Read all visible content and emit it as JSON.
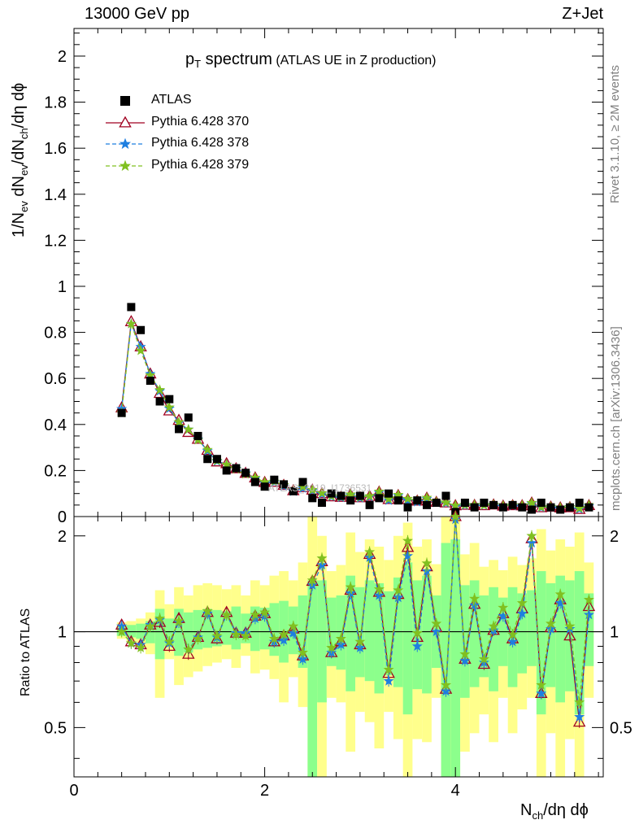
{
  "header": {
    "energy": "13000 GeV pp",
    "process": "Z+Jet"
  },
  "side_labels": {
    "rivet": "Rivet 3.1.10, ≥ 2M events",
    "mcplots": "mcplots.cern.ch [arXiv:1306.3436]"
  },
  "chart_data": {
    "type": "scatter",
    "title_main": "p",
    "title_sub": "T",
    "title_rest": " spectrum",
    "subtitle": "(ATLAS UE in Z production)",
    "watermark": "ATLAS_2019_I1736531",
    "xlabel_parts": [
      "N",
      "ch",
      "/dη dϕ"
    ],
    "ylabel_parts": [
      "1/N",
      "ev",
      " dN",
      "ev",
      "/dN",
      "ch",
      "/dη dϕ"
    ],
    "ratio_ylabel": "Ratio to ATLAS",
    "xlim": [
      0,
      5.55
    ],
    "ylim": [
      0,
      2.12
    ],
    "ratio_ylim": [
      0.35,
      2.3
    ],
    "ratio_log": true,
    "x_ticks": [
      {
        "v": 0,
        "label": "0"
      },
      {
        "v": 2,
        "label": "2"
      },
      {
        "v": 4,
        "label": "4"
      }
    ],
    "y_ticks": [
      {
        "v": 0,
        "label": "0"
      },
      {
        "v": 0.2,
        "label": "0.2"
      },
      {
        "v": 0.4,
        "label": "0.4"
      },
      {
        "v": 0.6,
        "label": "0.6"
      },
      {
        "v": 0.8,
        "label": "0.8"
      },
      {
        "v": 1,
        "label": "1"
      },
      {
        "v": 1.2,
        "label": "1.2"
      },
      {
        "v": 1.4,
        "label": "1.4"
      },
      {
        "v": 1.6,
        "label": "1.6"
      },
      {
        "v": 1.8,
        "label": "1.8"
      },
      {
        "v": 2,
        "label": "2"
      }
    ],
    "ratio_ticks": [
      {
        "v": 0.5,
        "label": "0.5"
      },
      {
        "v": 1,
        "label": "1"
      },
      {
        "v": 2,
        "label": "2"
      }
    ],
    "legend": [
      {
        "name": "ATLAS",
        "color": "#000000",
        "marker": "square"
      },
      {
        "name": "Pythia 6.428 370",
        "color": "#a00020",
        "marker": "triangle"
      },
      {
        "name": "Pythia 6.428 378",
        "color": "#1e7fe0",
        "marker": "star"
      },
      {
        "name": "Pythia 6.428 379",
        "color": "#80c020",
        "marker": "star"
      }
    ],
    "x": [
      0.5,
      0.6,
      0.7,
      0.8,
      0.9,
      1.0,
      1.1,
      1.2,
      1.3,
      1.4,
      1.5,
      1.6,
      1.7,
      1.8,
      1.9,
      2.0,
      2.1,
      2.2,
      2.3,
      2.4,
      2.5,
      2.6,
      2.7,
      2.8,
      2.9,
      3.0,
      3.1,
      3.2,
      3.3,
      3.4,
      3.5,
      3.6,
      3.7,
      3.8,
      3.9,
      4.0,
      4.1,
      4.2,
      4.3,
      4.4,
      4.5,
      4.6,
      4.7,
      4.8,
      4.9,
      5.0,
      5.1,
      5.2,
      5.3,
      5.4
    ],
    "data_values": [
      0.45,
      0.91,
      0.81,
      0.59,
      0.5,
      0.51,
      0.38,
      0.43,
      0.35,
      0.25,
      0.25,
      0.2,
      0.21,
      0.19,
      0.15,
      0.13,
      0.16,
      0.14,
      0.11,
      0.15,
      0.08,
      0.06,
      0.1,
      0.09,
      0.07,
      0.09,
      0.05,
      0.08,
      0.1,
      0.07,
      0.04,
      0.07,
      0.05,
      0.06,
      0.09,
      0.02,
      0.06,
      0.04,
      0.06,
      0.05,
      0.04,
      0.05,
      0.04,
      0.03,
      0.06,
      0.04,
      0.03,
      0.04,
      0.06,
      0.04
    ],
    "ratio_x": [
      0.5,
      0.6,
      0.7,
      0.8,
      0.9,
      1.0,
      1.1,
      1.2,
      1.3,
      1.4,
      1.5,
      1.6,
      1.7,
      1.8,
      1.9,
      2.0,
      2.1,
      2.2,
      2.3,
      2.4,
      2.5,
      2.6,
      2.7,
      2.8,
      2.9,
      3.0,
      3.1,
      3.2,
      3.3,
      3.4,
      3.5,
      3.6,
      3.7,
      3.8,
      3.9,
      4.0,
      4.1,
      4.2,
      4.3,
      4.4,
      4.5,
      4.6,
      4.7,
      4.8,
      4.9,
      5.0,
      5.1,
      5.2,
      5.3,
      5.4
    ],
    "series": [
      {
        "name": "Pythia 6.428 370",
        "ratios": [
          1.05,
          0.93,
          0.91,
          1.05,
          1.07,
          0.9,
          1.1,
          0.85,
          0.96,
          1.15,
          0.95,
          1.15,
          0.99,
          0.99,
          1.12,
          1.14,
          0.93,
          0.97,
          1.02,
          0.84,
          1.44,
          1.66,
          0.86,
          0.93,
          1.35,
          0.91,
          1.75,
          1.33,
          0.74,
          1.31,
          1.84,
          0.96,
          1.6,
          1.03,
          0.66,
          2.36,
          0.82,
          1.22,
          0.79,
          1.01,
          1.14,
          0.95,
          1.18,
          1.96,
          0.64,
          1.03,
          1.26,
          0.97,
          0.52,
          1.2
        ]
      },
      {
        "name": "Pythia 6.428 378",
        "ratios": [
          1.04,
          0.92,
          0.91,
          1.05,
          1.09,
          0.92,
          1.07,
          0.88,
          0.96,
          1.14,
          0.96,
          1.13,
          0.99,
          0.99,
          1.1,
          1.12,
          0.93,
          0.94,
          0.99,
          0.82,
          1.4,
          1.62,
          0.86,
          0.91,
          1.32,
          0.89,
          1.71,
          1.3,
          0.7,
          1.28,
          1.73,
          0.9,
          1.55,
          1.0,
          0.65,
          2.25,
          0.81,
          1.21,
          0.8,
          1.01,
          1.12,
          0.93,
          1.14,
          1.9,
          0.64,
          1.02,
          1.23,
          1.02,
          0.54,
          1.13
        ]
      },
      {
        "name": "Pythia 6.428 379",
        "ratios": [
          1.0,
          0.92,
          0.89,
          1.04,
          1.1,
          0.93,
          1.08,
          0.88,
          0.95,
          1.16,
          0.97,
          1.13,
          0.98,
          0.97,
          1.13,
          1.15,
          0.95,
          0.98,
          1.04,
          0.86,
          1.45,
          1.7,
          0.89,
          0.95,
          1.38,
          0.93,
          1.78,
          1.36,
          0.76,
          1.35,
          1.93,
          0.99,
          1.64,
          1.06,
          0.68,
          2.4,
          0.85,
          1.27,
          0.82,
          1.04,
          1.19,
          0.98,
          1.23,
          2.0,
          0.68,
          1.06,
          1.31,
          1.04,
          0.6,
          1.26
        ]
      }
    ],
    "band_yellow": [
      [
        0.95,
        1.07
      ],
      [
        0.93,
        1.08
      ],
      [
        0.9,
        1.1
      ],
      [
        0.85,
        1.15
      ],
      [
        0.62,
        1.35
      ],
      [
        0.82,
        1.22
      ],
      [
        0.68,
        1.38
      ],
      [
        0.72,
        1.3
      ],
      [
        0.75,
        1.4
      ],
      [
        0.78,
        1.42
      ],
      [
        0.8,
        1.4
      ],
      [
        0.82,
        1.36
      ],
      [
        0.77,
        1.4
      ],
      [
        0.84,
        1.3
      ],
      [
        0.74,
        1.45
      ],
      [
        0.76,
        1.4
      ],
      [
        0.71,
        1.5
      ],
      [
        0.6,
        1.55
      ],
      [
        0.72,
        1.45
      ],
      [
        0.58,
        1.65
      ],
      [
        0.35,
        2.3
      ],
      [
        0.35,
        2.0
      ],
      [
        0.62,
        1.55
      ],
      [
        0.6,
        1.62
      ],
      [
        0.42,
        2.05
      ],
      [
        0.56,
        1.78
      ],
      [
        0.52,
        1.95
      ],
      [
        0.43,
        1.85
      ],
      [
        0.56,
        1.68
      ],
      [
        0.46,
        2.0
      ],
      [
        0.35,
        2.2
      ],
      [
        0.46,
        1.85
      ],
      [
        0.45,
        1.95
      ],
      [
        0.62,
        1.63
      ],
      [
        0.35,
        2.3
      ],
      [
        0.35,
        2.3
      ],
      [
        0.42,
        1.75
      ],
      [
        0.48,
        1.9
      ],
      [
        0.55,
        1.6
      ],
      [
        0.45,
        1.68
      ],
      [
        0.62,
        1.56
      ],
      [
        0.48,
        1.72
      ],
      [
        0.57,
        1.62
      ],
      [
        0.62,
        1.7
      ],
      [
        0.35,
        2.1
      ],
      [
        0.48,
        1.8
      ],
      [
        0.35,
        1.95
      ],
      [
        0.46,
        1.85
      ],
      [
        0.35,
        2.05
      ],
      [
        0.62,
        1.65
      ]
    ],
    "band_green": [
      [
        0.97,
        1.04
      ],
      [
        0.96,
        1.05
      ],
      [
        0.95,
        1.06
      ],
      [
        0.92,
        1.08
      ],
      [
        0.82,
        1.18
      ],
      [
        0.9,
        1.1
      ],
      [
        0.84,
        1.18
      ],
      [
        0.86,
        1.15
      ],
      [
        0.88,
        1.17
      ],
      [
        0.89,
        1.18
      ],
      [
        0.9,
        1.17
      ],
      [
        0.91,
        1.16
      ],
      [
        0.88,
        1.2
      ],
      [
        0.92,
        1.14
      ],
      [
        0.87,
        1.2
      ],
      [
        0.88,
        1.19
      ],
      [
        0.84,
        1.23
      ],
      [
        0.8,
        1.25
      ],
      [
        0.85,
        1.2
      ],
      [
        0.77,
        1.3
      ],
      [
        0.35,
        1.45
      ],
      [
        0.6,
        1.45
      ],
      [
        0.78,
        1.28
      ],
      [
        0.76,
        1.3
      ],
      [
        0.65,
        1.5
      ],
      [
        0.72,
        1.38
      ],
      [
        0.7,
        1.45
      ],
      [
        0.64,
        1.42
      ],
      [
        0.73,
        1.34
      ],
      [
        0.67,
        1.48
      ],
      [
        0.55,
        1.65
      ],
      [
        0.66,
        1.45
      ],
      [
        0.64,
        1.5
      ],
      [
        0.77,
        1.3
      ],
      [
        0.35,
        1.9
      ],
      [
        0.35,
        1.95
      ],
      [
        0.62,
        1.4
      ],
      [
        0.67,
        1.45
      ],
      [
        0.72,
        1.3
      ],
      [
        0.65,
        1.38
      ],
      [
        0.78,
        1.28
      ],
      [
        0.67,
        1.38
      ],
      [
        0.74,
        1.32
      ],
      [
        0.78,
        1.35
      ],
      [
        0.55,
        1.55
      ],
      [
        0.67,
        1.42
      ],
      [
        0.6,
        1.5
      ],
      [
        0.65,
        1.45
      ],
      [
        0.55,
        1.55
      ],
      [
        0.78,
        1.32
      ]
    ]
  }
}
